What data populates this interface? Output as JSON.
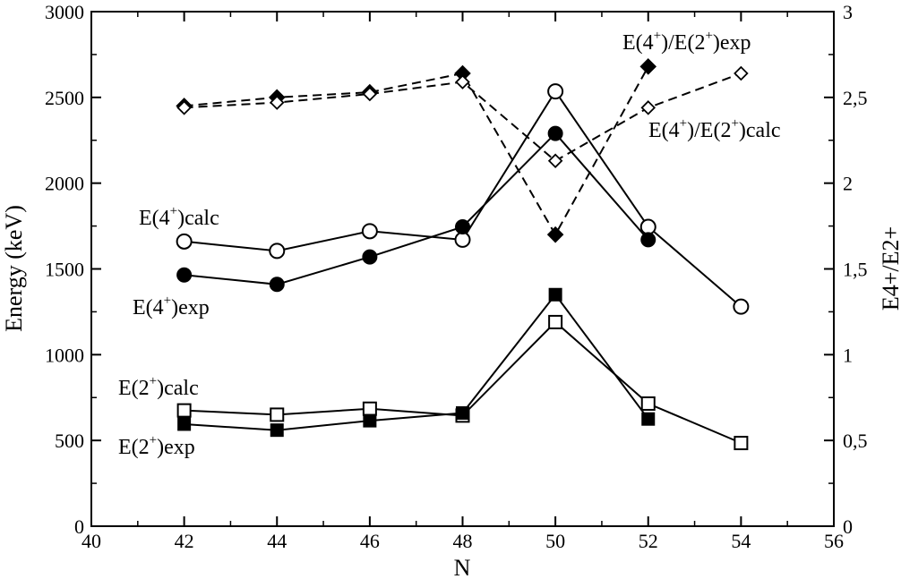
{
  "chart_data": {
    "type": "line",
    "xlabel": "N",
    "ylabel": "Energy (keV)",
    "y2label": "E4+/E2+",
    "xlim": [
      40,
      56
    ],
    "ylim": [
      0,
      3000
    ],
    "y2lim": [
      0,
      3
    ],
    "grid": false,
    "x_ticks": [
      40,
      42,
      44,
      46,
      48,
      50,
      52,
      54,
      56
    ],
    "x_tick_labels": [
      "40",
      "42",
      "44",
      "46",
      "48",
      "50",
      "52",
      "54",
      "56"
    ],
    "y_ticks": [
      0,
      500,
      1000,
      1500,
      2000,
      2500,
      3000
    ],
    "y_tick_labels": [
      "0",
      "500",
      "1000",
      "1500",
      "2000",
      "2500",
      "3000"
    ],
    "y2_ticks": [
      0,
      0.5,
      1,
      1.5,
      2,
      2.5,
      3
    ],
    "y2_tick_labels": [
      "0",
      "0,5",
      "1",
      "1,5",
      "2",
      "2,5",
      "3"
    ],
    "series": [
      {
        "key": "e4calc",
        "axis": "left",
        "marker": "circle-open",
        "dash": "solid",
        "x": [
          42,
          44,
          46,
          48,
          50,
          52,
          54
        ],
        "y": [
          1660,
          1605,
          1720,
          1670,
          2535,
          1745,
          1280
        ]
      },
      {
        "key": "e4exp",
        "axis": "left",
        "marker": "circle-filled",
        "dash": "solid",
        "x": [
          42,
          44,
          46,
          48,
          50,
          52
        ],
        "y": [
          1465,
          1410,
          1570,
          1745,
          2290,
          1670
        ]
      },
      {
        "key": "e2calc",
        "axis": "left",
        "marker": "square-open",
        "dash": "solid",
        "x": [
          42,
          44,
          46,
          48,
          50,
          52,
          54
        ],
        "y": [
          675,
          650,
          685,
          645,
          1190,
          715,
          485
        ]
      },
      {
        "key": "e2exp",
        "axis": "left",
        "marker": "square-filled",
        "dash": "solid",
        "x": [
          42,
          44,
          46,
          48,
          50,
          52
        ],
        "y": [
          595,
          560,
          615,
          660,
          1350,
          625
        ]
      },
      {
        "key": "ratio_exp",
        "axis": "right",
        "marker": "diamond-filled",
        "dash": "dashed",
        "x": [
          42,
          44,
          46,
          48,
          50,
          52
        ],
        "y": [
          2.45,
          2.5,
          2.53,
          2.64,
          1.7,
          2.68
        ]
      },
      {
        "key": "ratio_calc",
        "axis": "right",
        "marker": "diamond-open",
        "dash": "dashed",
        "x": [
          42,
          44,
          46,
          48,
          50,
          52,
          54
        ],
        "y": [
          2.44,
          2.47,
          2.52,
          2.59,
          2.13,
          2.44,
          2.64
        ]
      }
    ],
    "annotations": [
      {
        "key": "e4calc",
        "parts": [
          "E(4",
          "+",
          ")calc"
        ]
      },
      {
        "key": "e4exp",
        "parts": [
          "E(4",
          "+",
          ")exp"
        ]
      },
      {
        "key": "e2calc",
        "parts": [
          "E(2",
          "+",
          ")calc"
        ]
      },
      {
        "key": "e2exp",
        "parts": [
          "E(2",
          "+",
          ")exp"
        ]
      },
      {
        "key": "ratio_exp",
        "parts": [
          "E(4",
          "+",
          ")/E(2",
          "+",
          ")exp"
        ]
      },
      {
        "key": "ratio_calc",
        "parts": [
          "E(4",
          "+",
          ")/E(2",
          "+",
          ")calc"
        ]
      }
    ]
  }
}
